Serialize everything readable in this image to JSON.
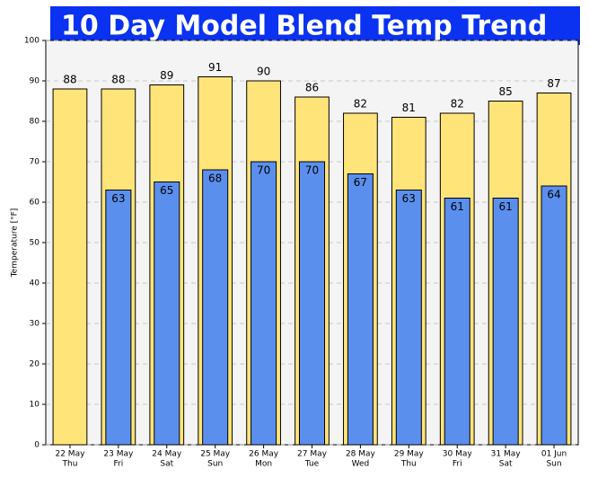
{
  "chart_data": {
    "type": "bar",
    "title": "10 Day Model Blend Temp Trend",
    "ylabel": "Temperature [°F]",
    "categories": [
      [
        "22 May",
        "Thu"
      ],
      [
        "23 May",
        "Fri"
      ],
      [
        "24 May",
        "Sat"
      ],
      [
        "25 May",
        "Sun"
      ],
      [
        "26 May",
        "Mon"
      ],
      [
        "27 May",
        "Tue"
      ],
      [
        "28 May",
        "Wed"
      ],
      [
        "29 May",
        "Thu"
      ],
      [
        "30 May",
        "Fri"
      ],
      [
        "31 May",
        "Sat"
      ],
      [
        "01 Jun",
        "Sun"
      ]
    ],
    "series": [
      {
        "color": "#ffe47a",
        "values": [
          88,
          88,
          89,
          91,
          90,
          86,
          82,
          81,
          82,
          85,
          87
        ]
      },
      {
        "color": "#5b8fee",
        "values": [
          null,
          63,
          65,
          68,
          70,
          70,
          67,
          63,
          61,
          61,
          64
        ]
      }
    ],
    "ylim": [
      0,
      100
    ],
    "yticks": [
      0,
      10,
      20,
      30,
      40,
      50,
      60,
      70,
      80,
      90,
      100
    ],
    "grid": true
  }
}
